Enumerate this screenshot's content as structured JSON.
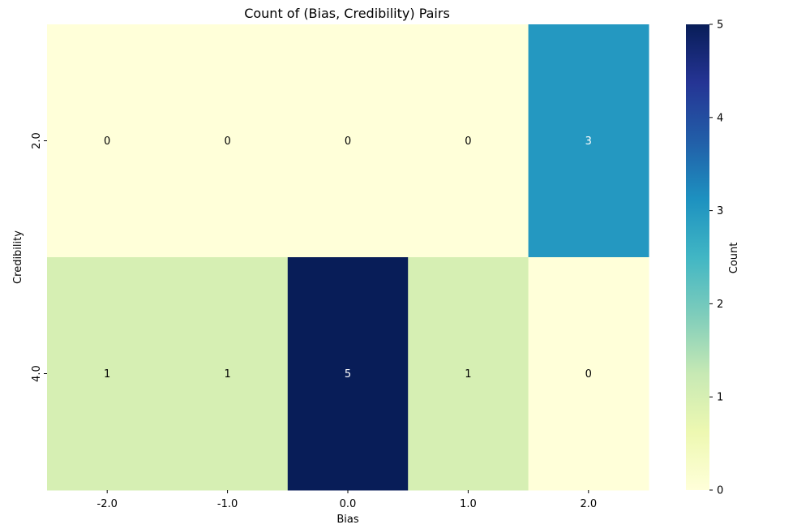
{
  "chart_data": {
    "type": "heatmap",
    "title": "Count of (Bias, Credibility) Pairs",
    "xlabel": "Bias",
    "ylabel": "Credibility",
    "x_categories": [
      "-2.0",
      "-1.0",
      "0.0",
      "1.0",
      "2.0"
    ],
    "y_categories": [
      "2.0",
      "4.0"
    ],
    "values": [
      [
        0,
        0,
        0,
        0,
        3
      ],
      [
        1,
        1,
        5,
        1,
        0
      ]
    ],
    "colorbar": {
      "label": "Count",
      "range": [
        0,
        5
      ],
      "ticks": [
        "0",
        "1",
        "2",
        "3",
        "4",
        "5"
      ],
      "colormap": "YlGnBu",
      "stops": [
        "#ffffd9",
        "#edf8b1",
        "#c7e9b4",
        "#7fcdbb",
        "#41b6c4",
        "#1d91c0",
        "#225ea8",
        "#253494",
        "#081d58"
      ]
    }
  }
}
